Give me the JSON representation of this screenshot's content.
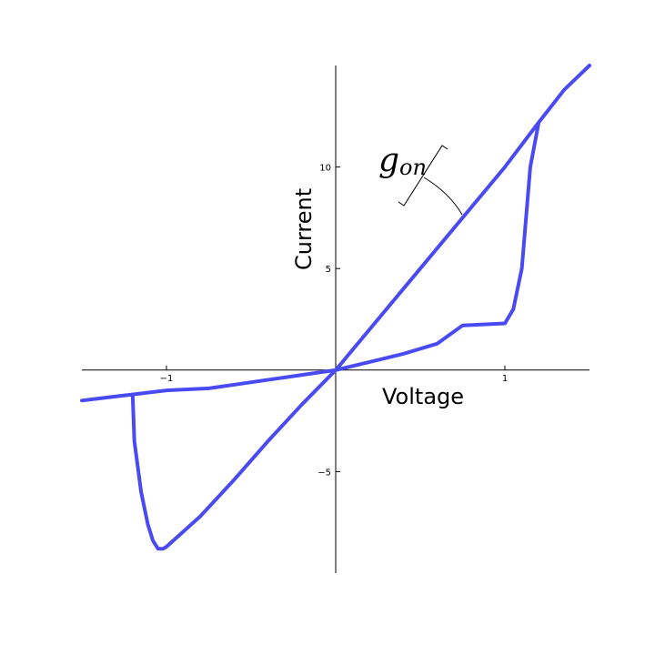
{
  "chart_data": {
    "type": "line",
    "title": "",
    "xlabel": "Voltage",
    "ylabel": "Current",
    "xlim": [
      -1.5,
      1.5
    ],
    "ylim": [
      -10,
      15
    ],
    "xticks": [
      {
        "value": -1,
        "label": "−1"
      },
      {
        "value": 1,
        "label": "1"
      }
    ],
    "yticks": [
      {
        "value": -5,
        "label": "−5"
      },
      {
        "value": 5,
        "label": "5"
      },
      {
        "value": 10,
        "label": "10"
      }
    ],
    "grid": false,
    "series": [
      {
        "color": "#4a4af2",
        "x": [
          -1.5,
          -1.2,
          -1.19,
          -1.15,
          -1.11,
          -1.08,
          -1.05,
          -1.02,
          -1.0,
          -0.8,
          -0.6,
          -0.4,
          -0.2,
          0.0,
          0.2,
          0.4,
          0.6,
          0.75,
          1.0,
          1.05,
          1.1,
          1.13,
          1.15,
          1.2,
          1.35,
          1.5,
          1.35,
          1.2,
          1.0,
          0.75,
          0.5,
          0.25,
          0.0,
          -0.25,
          -0.5,
          -0.75,
          -1.0,
          -1.2,
          -1.35,
          -1.5
        ],
        "y": [
          -1.5,
          -1.2,
          -3.5,
          -6.0,
          -7.6,
          -8.4,
          -8.8,
          -8.8,
          -8.7,
          -7.2,
          -5.4,
          -3.5,
          -1.7,
          0.0,
          0.4,
          0.8,
          1.3,
          2.2,
          2.3,
          3.0,
          5.0,
          8.0,
          10.0,
          12.2,
          13.8,
          15.0,
          13.8,
          12.2,
          10.0,
          7.5,
          5.0,
          2.5,
          0.0,
          -0.3,
          -0.6,
          -0.9,
          -1.0,
          -1.2,
          -1.35,
          -1.5
        ]
      }
    ],
    "annotations": [
      {
        "text": "g",
        "subscript": "on"
      }
    ]
  }
}
